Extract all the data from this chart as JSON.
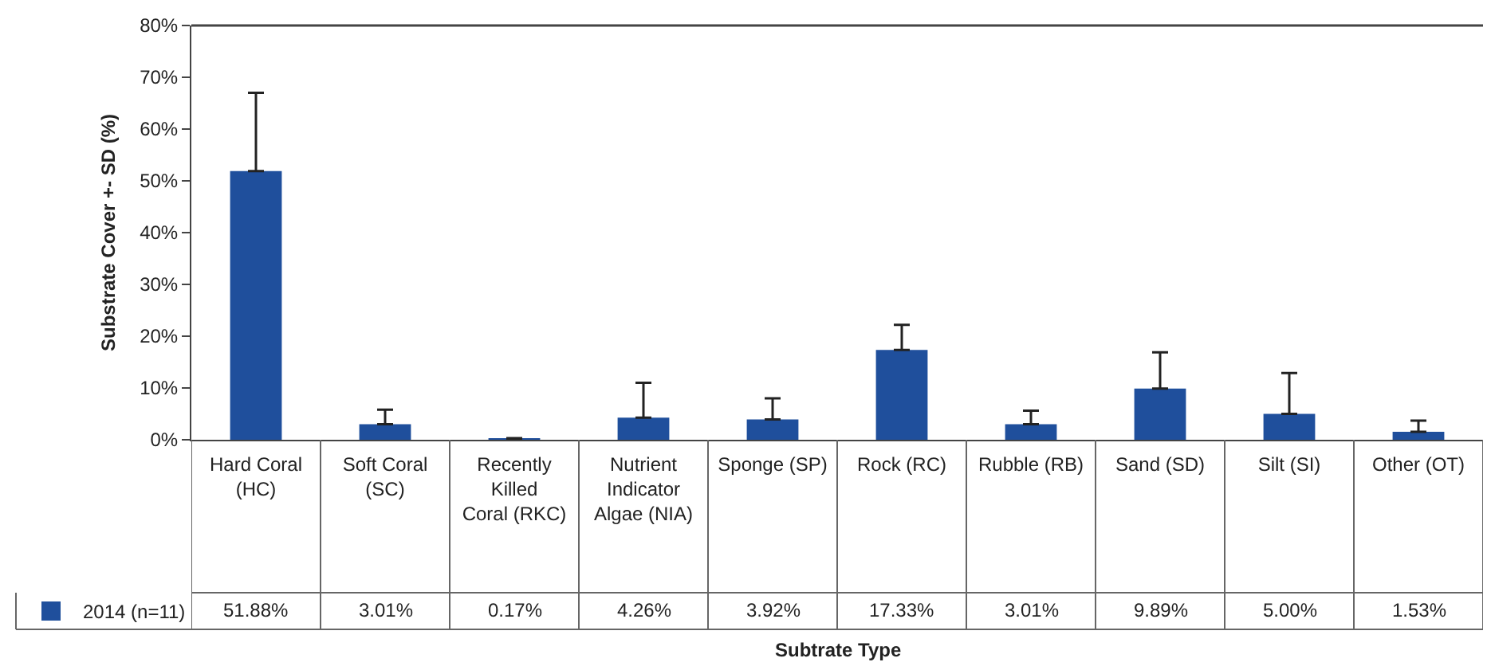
{
  "chart_data": {
    "type": "bar",
    "categories": [
      "Hard Coral (HC)",
      "Soft Coral (SC)",
      "Recently Killed Coral (RKC)",
      "Nutrient Indicator Algae (NIA)",
      "Sponge (SP)",
      "Rock (RC)",
      "Rubble (RB)",
      "Sand (SD)",
      "Silt (SI)",
      "Other (OT)"
    ],
    "series": [
      {
        "name": "2014 (n=11)",
        "color": "#1f4f9c",
        "values": [
          51.88,
          3.01,
          0.17,
          4.26,
          3.92,
          17.33,
          3.01,
          9.89,
          5.0,
          1.53
        ],
        "errors": [
          [
            51.88,
            67
          ],
          [
            3.01,
            5.8
          ],
          [
            0.17,
            0.3
          ],
          [
            4.26,
            11
          ],
          [
            3.92,
            8
          ],
          [
            17.33,
            22.2
          ],
          [
            3.01,
            5.6
          ],
          [
            9.89,
            16.9
          ],
          [
            5.0,
            12.9
          ],
          [
            1.53,
            3.7
          ]
        ]
      }
    ],
    "ylim": [
      0,
      80
    ],
    "yticks": [
      {
        "value": 0,
        "label": "0%"
      },
      {
        "value": 10,
        "label": "10%"
      },
      {
        "value": 20,
        "label": "20%"
      },
      {
        "value": 30,
        "label": "30%"
      },
      {
        "value": 40,
        "label": "40%"
      },
      {
        "value": 50,
        "label": "50%"
      },
      {
        "value": 60,
        "label": "60%"
      },
      {
        "value": 70,
        "label": "70%"
      },
      {
        "value": 80,
        "label": "80%"
      }
    ],
    "value_labels": [
      "51.88%",
      "3.01%",
      "0.17%",
      "4.26%",
      "3.92%",
      "17.33%",
      "3.01%",
      "9.89%",
      "5.00%",
      "1.53%"
    ],
    "ylabel": "Substrate Cover +- SD (%)",
    "annotations": [
      "Subtrate Type"
    ],
    "grid": false,
    "legend": "bottom left"
  }
}
